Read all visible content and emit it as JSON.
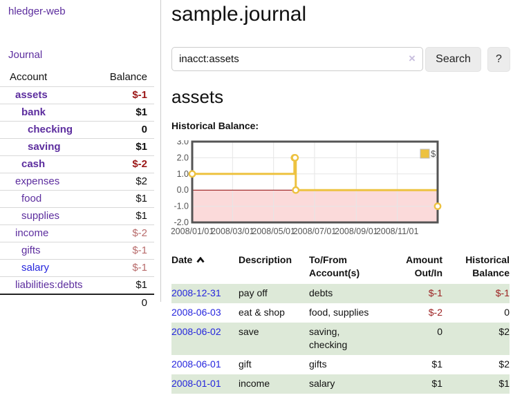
{
  "sidebar": {
    "app_title": "hledger-web",
    "journal_link": "Journal",
    "table": {
      "account_header": "Account",
      "balance_header": "Balance",
      "rows": [
        {
          "name": "assets",
          "indent": 0,
          "bold": true,
          "balance": "$-1",
          "tone": "neg-strong"
        },
        {
          "name": "bank",
          "indent": 1,
          "bold": true,
          "balance": "$1",
          "tone": "pos"
        },
        {
          "name": "checking",
          "indent": 2,
          "bold": true,
          "balance": "0",
          "tone": "pos"
        },
        {
          "name": "saving",
          "indent": 2,
          "bold": true,
          "balance": "$1",
          "tone": "pos"
        },
        {
          "name": "cash",
          "indent": 1,
          "bold": true,
          "balance": "$-2",
          "tone": "neg-strong"
        },
        {
          "name": "expenses",
          "indent": 0,
          "bold": false,
          "balance": "$2",
          "tone": "pos"
        },
        {
          "name": "food",
          "indent": 1,
          "bold": false,
          "balance": "$1",
          "tone": "pos"
        },
        {
          "name": "supplies",
          "indent": 1,
          "bold": false,
          "balance": "$1",
          "tone": "pos"
        },
        {
          "name": "income",
          "indent": 0,
          "bold": false,
          "balance": "$-2",
          "tone": "neg-muted"
        },
        {
          "name": "gifts",
          "indent": 1,
          "bold": false,
          "balance": "$-1",
          "tone": "neg-muted"
        },
        {
          "name": "salary",
          "indent": 1,
          "bold": false,
          "balance": "$-1",
          "tone": "neg-muted"
        },
        {
          "name": "liabilities:debts",
          "indent": 0,
          "bold": false,
          "balance": "$1",
          "tone": "pos"
        }
      ],
      "total": "0"
    }
  },
  "header": {
    "title": "sample.journal"
  },
  "search": {
    "value": "inacct:assets",
    "clear_icon": "×",
    "button_label": "Search",
    "help_label": "?"
  },
  "account_page": {
    "heading": "assets",
    "chart_label": "Historical Balance:"
  },
  "chart_data": {
    "type": "line",
    "title": "Historical Balance",
    "step": true,
    "series": [
      {
        "name": "$",
        "color": "#edc240",
        "points": [
          [
            "2008/01/01",
            1
          ],
          [
            "2008/06/01",
            2
          ],
          [
            "2008/06/02",
            2
          ],
          [
            "2008/06/03",
            0
          ],
          [
            "2008/12/31",
            -1
          ]
        ]
      }
    ],
    "x_range": [
      "2008/01/01",
      "2008/12/31"
    ],
    "ylim": [
      -2,
      3
    ],
    "y_ticks": [
      "3.0",
      "2.0",
      "1.0",
      "0.0",
      "-1.0",
      "-2.0"
    ],
    "x_ticks": [
      "2008/01/01",
      "2008/03/01",
      "2008/05/01",
      "2008/07/01",
      "2008/09/01",
      "2008/11/01"
    ],
    "grid": true,
    "legend": {
      "position": "top-right",
      "label": "$",
      "swatch_color": "#edc240"
    },
    "negative_region_color": "#fbdada",
    "zero_line_color": "#8b0000",
    "frame_color": "#545454",
    "grid_color": "#e6e6e6",
    "tick_label_color": "#545454"
  },
  "register": {
    "headers": [
      "Date",
      "Description",
      "To/From\nAccount(s)",
      "Amount\nOut/In",
      "Historical\nBalance"
    ],
    "rows": [
      {
        "date": "2008-12-31",
        "description": "pay off",
        "accounts": "debts",
        "amount": "$-1",
        "balance": "$-1"
      },
      {
        "date": "2008-06-03",
        "description": "eat & shop",
        "accounts": "food, supplies",
        "amount": "$-2",
        "balance": "0"
      },
      {
        "date": "2008-06-02",
        "description": "save",
        "accounts": "saving,\nchecking",
        "amount": "0",
        "balance": "$2"
      },
      {
        "date": "2008-06-01",
        "description": "gift",
        "accounts": "gifts",
        "amount": "$1",
        "balance": "$2"
      },
      {
        "date": "2008-01-01",
        "description": "income",
        "accounts": "salary",
        "amount": "$1",
        "balance": "$1"
      }
    ]
  }
}
